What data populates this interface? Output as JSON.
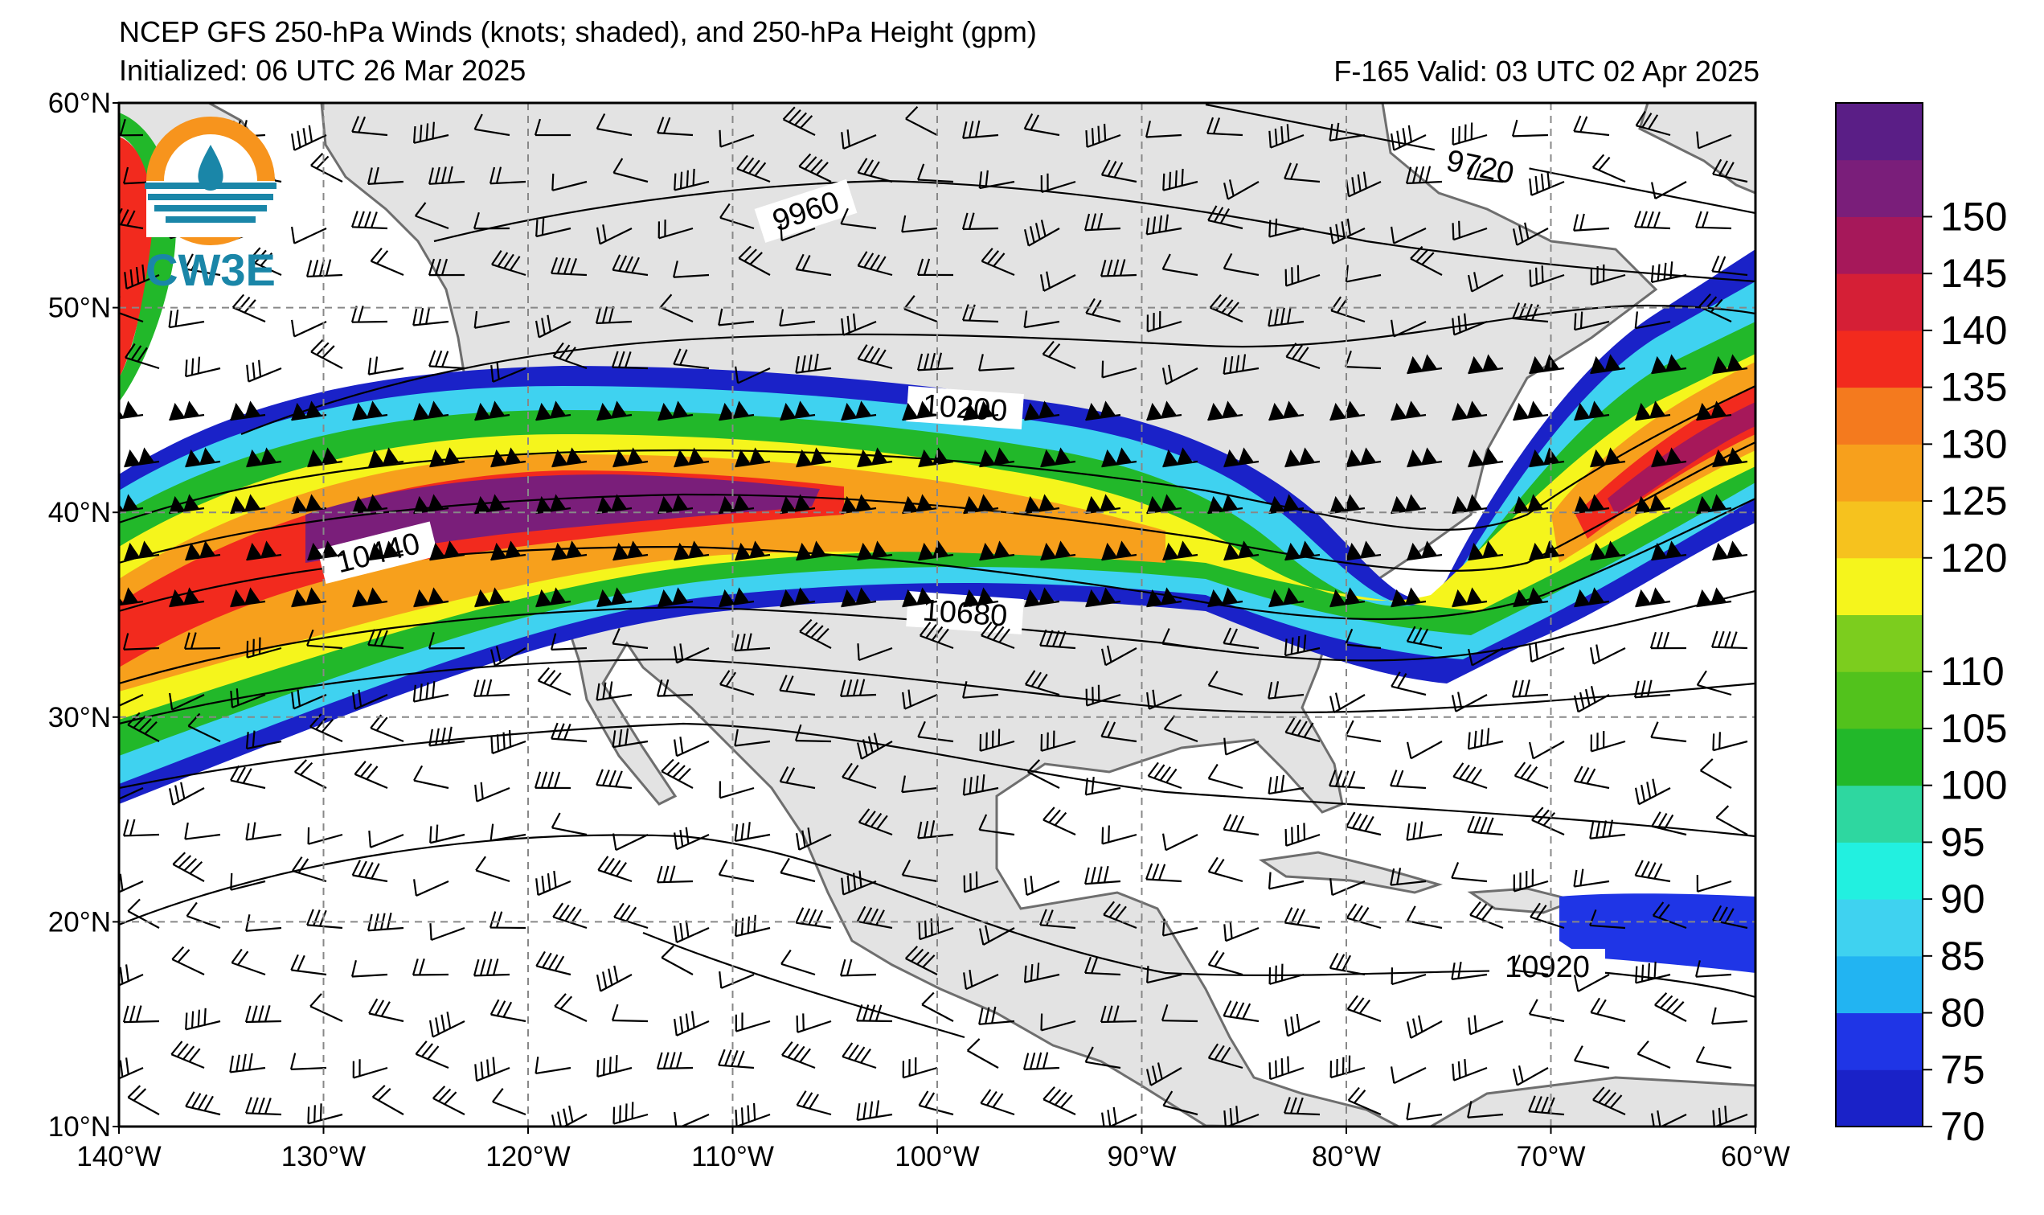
{
  "header": {
    "title": "NCEP GFS 250-hPa Winds (knots; shaded), and 250-hPa Height (gpm)",
    "initialized": "Initialized: 06 UTC 26 Mar 2025",
    "valid": "F-165  Valid: 03 UTC 02 Apr 2025"
  },
  "logo": {
    "text": "CW3E"
  },
  "axes": {
    "lat_labels": [
      "60°N",
      "50°N",
      "40°N",
      "30°N",
      "20°N",
      "10°N"
    ],
    "lon_labels": [
      "140°W",
      "130°W",
      "120°W",
      "110°W",
      "100°W",
      "90°W",
      "80°W",
      "70°W",
      "60°W"
    ]
  },
  "map": {
    "extent": {
      "lon": [
        -140,
        -60
      ],
      "lat": [
        10,
        60
      ]
    },
    "grid": "dashed gray every 10 degrees",
    "land_color": "#e3e3e3",
    "ocean_color": "#ffffff"
  },
  "contours": {
    "labels": [
      "9720",
      "9960",
      "10200",
      "10440",
      "10680",
      "10920"
    ]
  },
  "colorbar": {
    "ticks": [
      "150",
      "145",
      "140",
      "135",
      "130",
      "125",
      "120",
      "110",
      "105",
      "100",
      "95",
      "90",
      "85",
      "80",
      "75",
      "70"
    ],
    "levels": [
      {
        "min": 70,
        "color": "#1a22c8"
      },
      {
        "min": 75,
        "color": "#1f35e6"
      },
      {
        "min": 80,
        "color": "#22b4f2"
      },
      {
        "min": 85,
        "color": "#3fd2f0"
      },
      {
        "min": 90,
        "color": "#22f0e0"
      },
      {
        "min": 95,
        "color": "#2ed7a0"
      },
      {
        "min": 100,
        "color": "#22b82a"
      },
      {
        "min": 105,
        "color": "#52c21c"
      },
      {
        "min": 110,
        "color": "#7ccd1e"
      },
      {
        "min": 115,
        "color": "#f5f51c"
      },
      {
        "min": 120,
        "color": "#f6c21e"
      },
      {
        "min": 125,
        "color": "#f7a01c"
      },
      {
        "min": 130,
        "color": "#f47a1e"
      },
      {
        "min": 135,
        "color": "#f22a1e"
      },
      {
        "min": 140,
        "color": "#d51f36"
      },
      {
        "min": 145,
        "color": "#a6185a"
      },
      {
        "min": 150,
        "color": "#7a1e7a"
      },
      {
        "min": 155,
        "color": "#5a1e86"
      }
    ]
  }
}
